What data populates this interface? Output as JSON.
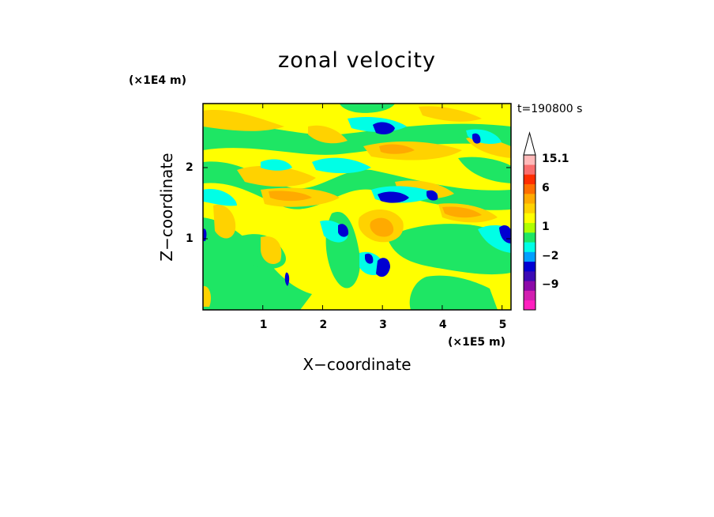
{
  "chart_data": {
    "type": "heatmap",
    "title": "zonal velocity",
    "xlabel": "X−coordinate",
    "ylabel": "Z−coordinate",
    "x_scale_note": "(×1E5 m)",
    "z_scale_note": "(×1E4 m)",
    "time_label": "t=190800 s",
    "xlim": [
      0,
      5.15
    ],
    "ylim": [
      0,
      2.9
    ],
    "x_ticks": [
      "1",
      "2",
      "3",
      "4",
      "5"
    ],
    "z_ticks": [
      "1",
      "2"
    ],
    "colorbar": {
      "levels": [
        {
          "color": "#ff1fbf"
        },
        {
          "color": "#d21fb0"
        },
        {
          "color": "#8c0aa8"
        },
        {
          "color": "#3c0ab4"
        },
        {
          "color": "#0000d2"
        },
        {
          "color": "#00a0ff"
        },
        {
          "color": "#00ffe6"
        },
        {
          "color": "#1ee664"
        },
        {
          "color": "#afff00"
        },
        {
          "color": "#ffff00"
        },
        {
          "color": "#ffd200"
        },
        {
          "color": "#ffaa00"
        },
        {
          "color": "#ff6e00"
        },
        {
          "color": "#ff2d00"
        },
        {
          "color": "#fa6e6e"
        },
        {
          "color": "#ffb9b9"
        }
      ],
      "labels": [
        {
          "text": "−9",
          "level": 2
        },
        {
          "text": "−2",
          "level": 5
        },
        {
          "text": "1",
          "level": 8
        },
        {
          "text": "6",
          "level": 12
        },
        {
          "text": "15.1",
          "level": 15
        }
      ],
      "extend_max": true
    },
    "field_colors": {
      "yellow": "#ffff00",
      "green": "#1ee664",
      "orange": "#ffd200",
      "darkorange": "#ffaa00",
      "cyan": "#00ffe6",
      "blue": "#0000d2"
    }
  }
}
